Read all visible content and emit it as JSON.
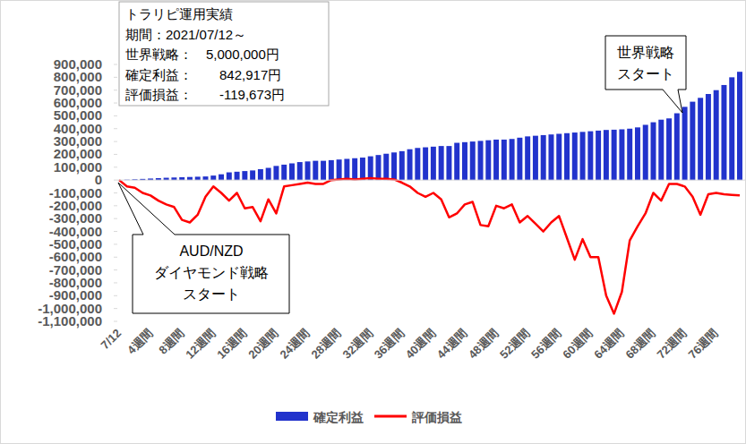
{
  "chart_data": {
    "type": "bar",
    "categories": [
      "7/12",
      null,
      null,
      null,
      "4週間",
      null,
      null,
      null,
      "8週間",
      null,
      null,
      null,
      "12週間",
      null,
      null,
      null,
      "16週間",
      null,
      null,
      null,
      "20週間",
      null,
      null,
      null,
      "24週間",
      null,
      null,
      null,
      "28週間",
      null,
      null,
      null,
      "32週間",
      null,
      null,
      null,
      "36週間",
      null,
      null,
      null,
      "40週間",
      null,
      null,
      null,
      "44週間",
      null,
      null,
      null,
      "48週間",
      null,
      null,
      null,
      "52週間",
      null,
      null,
      null,
      "56週間",
      null,
      null,
      null,
      "60週間",
      null,
      null,
      null,
      "64週間",
      null,
      null,
      null,
      "68週間",
      null,
      null,
      null,
      "72週間",
      null,
      null,
      null,
      "76週間",
      null,
      null,
      null
    ],
    "series": [
      {
        "name": "確定利益",
        "type": "bar",
        "color": "#2233cc",
        "values": [
          0,
          3000,
          6000,
          9000,
          12000,
          15000,
          18000,
          20000,
          22000,
          24000,
          26000,
          28000,
          35000,
          45000,
          60000,
          65000,
          70000,
          75000,
          85000,
          95000,
          110000,
          120000,
          130000,
          140000,
          145000,
          150000,
          150000,
          155000,
          160000,
          165000,
          170000,
          175000,
          185000,
          195000,
          205000,
          215000,
          225000,
          240000,
          250000,
          255000,
          260000,
          265000,
          265000,
          290000,
          295000,
          300000,
          305000,
          310000,
          315000,
          315000,
          320000,
          330000,
          340000,
          345000,
          350000,
          355000,
          360000,
          365000,
          370000,
          375000,
          380000,
          385000,
          390000,
          392000,
          395000,
          400000,
          410000,
          430000,
          450000,
          470000,
          480000,
          520000,
          570000,
          610000,
          640000,
          670000,
          700000,
          740000,
          800000,
          842917
        ]
      },
      {
        "name": "評価損益",
        "type": "line",
        "color": "#ff0000",
        "values": [
          0,
          -50000,
          -60000,
          -100000,
          -120000,
          -160000,
          -190000,
          -210000,
          -310000,
          -330000,
          -270000,
          -130000,
          -50000,
          -100000,
          -160000,
          -100000,
          -220000,
          -210000,
          -320000,
          -150000,
          -260000,
          -50000,
          -40000,
          -30000,
          -20000,
          -30000,
          -30000,
          0,
          5000,
          10000,
          5000,
          10000,
          15000,
          10000,
          10000,
          5000,
          -20000,
          -50000,
          -100000,
          -130000,
          -100000,
          -150000,
          -290000,
          -260000,
          -190000,
          -170000,
          -350000,
          -360000,
          -200000,
          -220000,
          -190000,
          -330000,
          -280000,
          -340000,
          -400000,
          -330000,
          -280000,
          -450000,
          -620000,
          -460000,
          -600000,
          -600000,
          -900000,
          -1040000,
          -870000,
          -470000,
          -360000,
          -260000,
          -100000,
          -160000,
          -30000,
          -30000,
          -50000,
          -130000,
          -270000,
          -110000,
          -100000,
          -110000,
          -115000,
          -119673
        ]
      }
    ],
    "ylim": [
      -1100000,
      900000
    ],
    "yticks": [
      {
        "value": -1100000,
        "label": "-1,100,000"
      },
      {
        "value": -1000000,
        "label": "-1,000,000"
      },
      {
        "value": -900000,
        "label": "-900,000"
      },
      {
        "value": -800000,
        "label": "-800,000"
      },
      {
        "value": -700000,
        "label": "-700,000"
      },
      {
        "value": -600000,
        "label": "-600,000"
      },
      {
        "value": -500000,
        "label": "-500,000"
      },
      {
        "value": -400000,
        "label": "-400,000"
      },
      {
        "value": -300000,
        "label": "-300,000"
      },
      {
        "value": -200000,
        "label": "-200,000"
      },
      {
        "value": -100000,
        "label": "-100,000"
      },
      0,
      {
        "value": 100000,
        "label": "100,000"
      },
      {
        "value": 200000,
        "label": "200,000"
      },
      {
        "value": 300000,
        "label": "300,000"
      },
      {
        "value": 400000,
        "label": "400,000"
      },
      {
        "value": 500000,
        "label": "500,000"
      },
      {
        "value": 600000,
        "label": "600,000"
      },
      {
        "value": 700000,
        "label": "700,000"
      },
      {
        "value": 800000,
        "label": "800,000"
      },
      {
        "value": 900000,
        "label": "900,000"
      }
    ],
    "grid": false,
    "legend": "bottom",
    "annotations": [
      {
        "lines": [
          "トラリピ運用実績",
          "期間：2021/07/12～",
          "世界戦略：　5,000,000円",
          "確定利益：　　842,917円",
          "評価損益：　　-119,673円"
        ]
      },
      {
        "lines": [
          "世界戦略",
          "スタート"
        ]
      },
      {
        "lines": [
          "AUD/NZD",
          "ダイヤモンド戦略",
          "スタート"
        ]
      }
    ]
  }
}
